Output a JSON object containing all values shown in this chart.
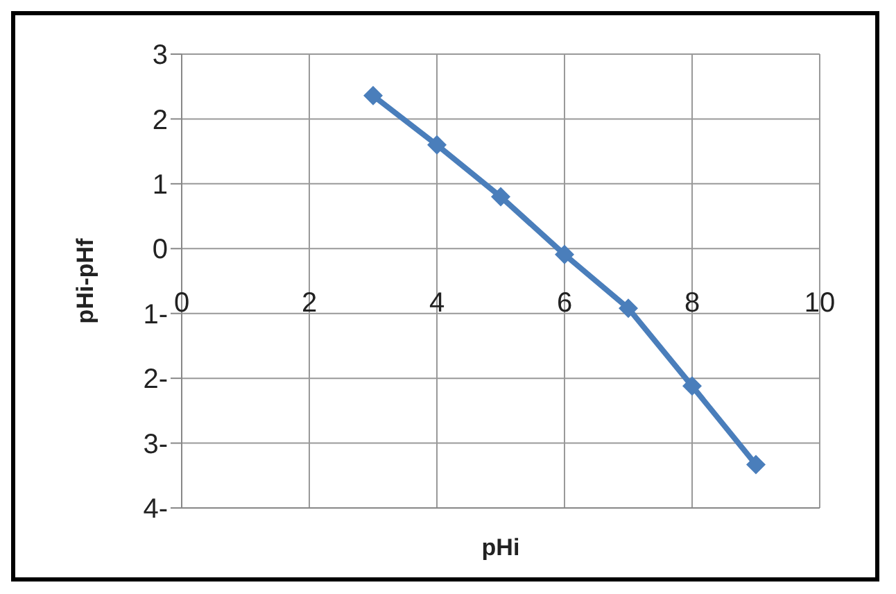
{
  "chart_data": {
    "type": "line",
    "xlabel": "pHi",
    "ylabel": "pHi-pHf",
    "x": [
      3,
      4,
      5,
      6,
      7,
      8,
      9
    ],
    "series": [
      {
        "color": "#4a7ebb",
        "values": [
          2.36,
          1.6,
          0.8,
          -0.09,
          -0.92,
          -2.12,
          -3.33
        ]
      }
    ],
    "xlim": [
      0,
      10
    ],
    "xticks": [
      0,
      2,
      4,
      6,
      8,
      10
    ],
    "ylim": [
      -4,
      3
    ],
    "yticks": [
      {
        "value": -4,
        "label": "4-"
      },
      {
        "value": -3,
        "label": "3-"
      },
      {
        "value": -2,
        "label": "2-"
      },
      {
        "value": -1,
        "label": "1-"
      },
      0,
      1,
      2,
      3
    ],
    "grid": true,
    "marker": "diamond",
    "line_style": "solid",
    "legend": false
  }
}
